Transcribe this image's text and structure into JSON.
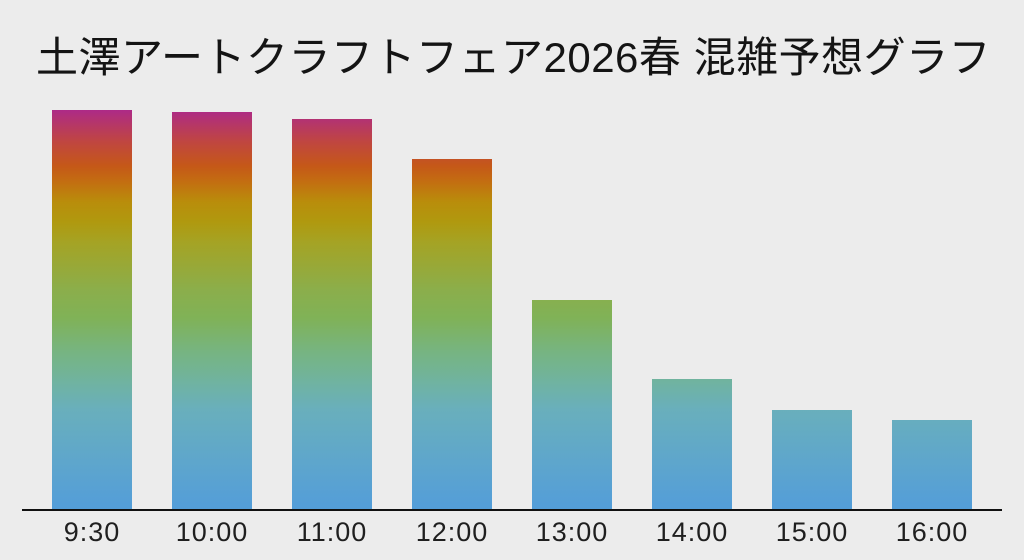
{
  "title": "土澤アートクラフトフェア2026春 混雑予想グラフ",
  "colors": {
    "background": "#ececec",
    "title_text": "#141414",
    "axis_line": "#111111",
    "tick_label_text": "#1f1f1f"
  },
  "chart_data": {
    "type": "bar",
    "title": "土澤アートクラフトフェア2026春 混雑予想グラフ",
    "xlabel": "",
    "ylabel": "",
    "categories": [
      "9:30",
      "10:00",
      "11:00",
      "12:00",
      "13:00",
      "14:00",
      "15:00",
      "16:00"
    ],
    "values": [
      100,
      99.5,
      97.75,
      87.75,
      52.5,
      32.75,
      25,
      22.5
    ],
    "ylim": [
      0,
      100
    ],
    "grid": false,
    "legend": "none",
    "y_axis_visible": false,
    "value_labels_visible": false,
    "bar_fill": "vertical rainbow gradient anchored to plot area (taller bars reveal warmer top colors)",
    "gradient_stops_top_to_bottom": [
      {
        "pos": 0,
        "color": "#ad2a87"
      },
      {
        "pos": 8,
        "color": "#c04640"
      },
      {
        "pos": 14,
        "color": "#c55818"
      },
      {
        "pos": 18,
        "color": "#c36e11"
      },
      {
        "pos": 23,
        "color": "#b98d0b"
      },
      {
        "pos": 28,
        "color": "#b0990f"
      },
      {
        "pos": 33,
        "color": "#a5a324"
      },
      {
        "pos": 45,
        "color": "#8bae4b"
      },
      {
        "pos": 52,
        "color": "#80b257"
      },
      {
        "pos": 60,
        "color": "#77b47f"
      },
      {
        "pos": 68,
        "color": "#70b3a0"
      },
      {
        "pos": 75,
        "color": "#69afbc"
      },
      {
        "pos": 88,
        "color": "#5ea6cc"
      },
      {
        "pos": 100,
        "color": "#539dd9"
      }
    ]
  }
}
